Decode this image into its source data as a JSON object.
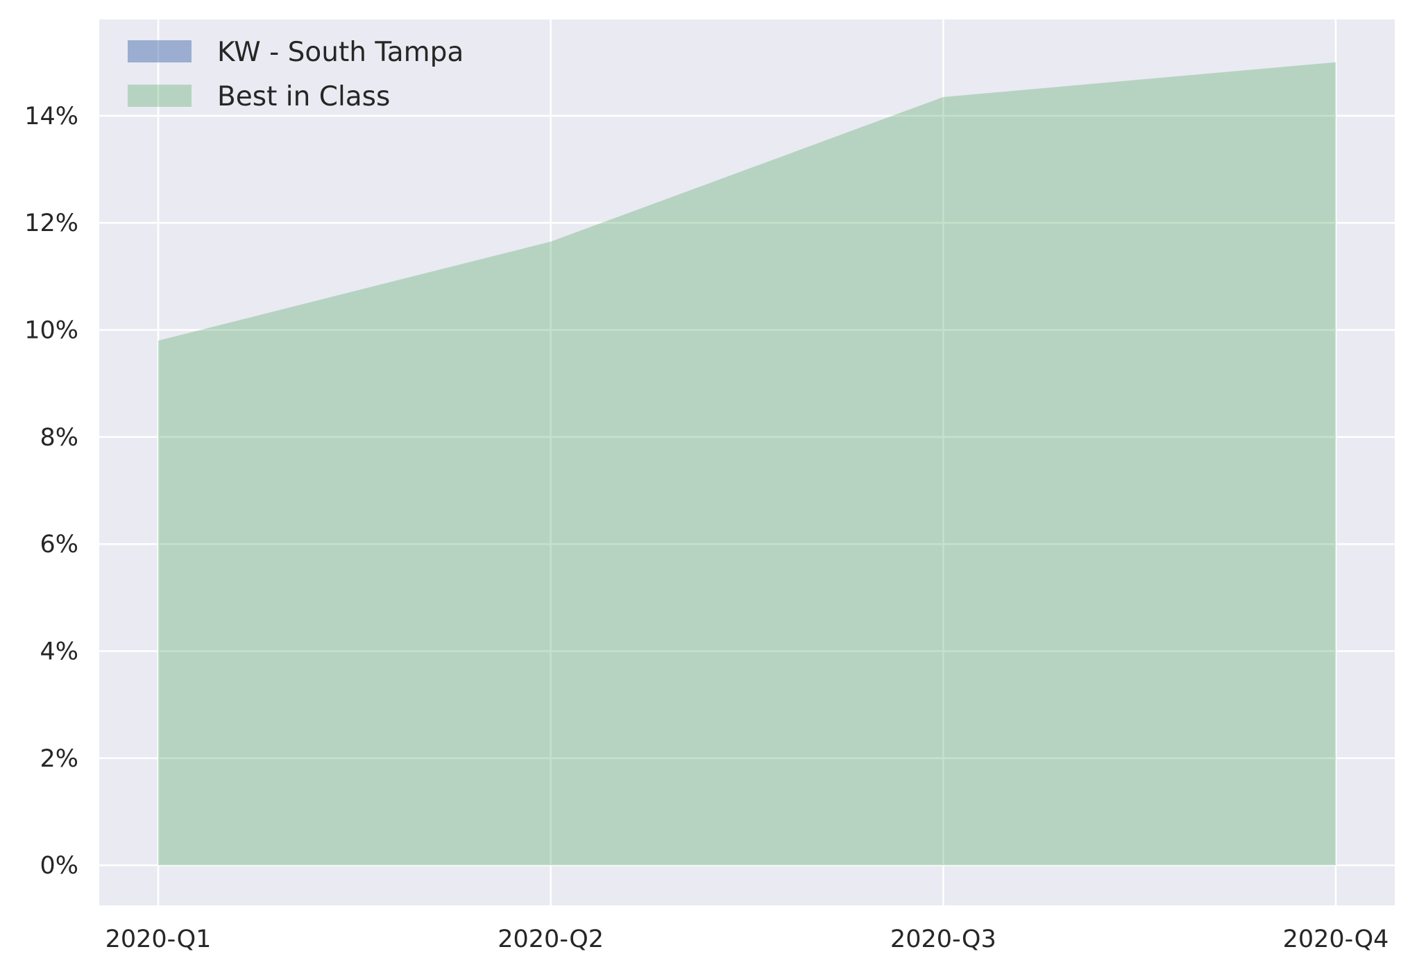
{
  "chart_data": {
    "type": "area",
    "categories": [
      "2020-Q1",
      "2020-Q2",
      "2020-Q3",
      "2020-Q4"
    ],
    "series": [
      {
        "name": "KW - South Tampa",
        "values": [
          0,
          0,
          0,
          0
        ],
        "color": "#4c72b0",
        "opacity": 0.5
      },
      {
        "name": "Best in Class",
        "values": [
          0.098,
          0.1165,
          0.1435,
          0.15
        ],
        "color": "#55a868",
        "opacity": 0.35
      }
    ],
    "y_tick_values": [
      0,
      0.02,
      0.04,
      0.06,
      0.08,
      0.1,
      0.12,
      0.14
    ],
    "y_tick_labels": [
      "0%",
      "2%",
      "4%",
      "6%",
      "8%",
      "10%",
      "12%",
      "14%"
    ],
    "ylim": [
      -0.0075,
      0.158
    ],
    "y_format": "percent",
    "grid": true,
    "legend_position": "top-left",
    "background_color": "#eaeaf2",
    "grid_color": "#ffffff"
  }
}
